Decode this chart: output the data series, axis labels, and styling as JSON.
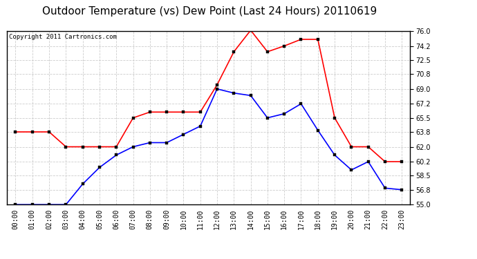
{
  "title": "Outdoor Temperature (vs) Dew Point (Last 24 Hours) 20110619",
  "copyright_text": "Copyright 2011 Cartronics.com",
  "x_labels": [
    "00:00",
    "01:00",
    "02:00",
    "03:00",
    "04:00",
    "05:00",
    "06:00",
    "07:00",
    "08:00",
    "09:00",
    "10:00",
    "11:00",
    "12:00",
    "13:00",
    "14:00",
    "15:00",
    "16:00",
    "17:00",
    "18:00",
    "19:00",
    "20:00",
    "21:00",
    "22:00",
    "23:00"
  ],
  "temp_red": [
    63.8,
    63.8,
    63.8,
    62.0,
    62.0,
    62.0,
    62.0,
    65.5,
    66.2,
    66.2,
    66.2,
    66.2,
    69.5,
    73.5,
    76.1,
    73.5,
    74.2,
    75.0,
    75.0,
    65.5,
    62.0,
    62.0,
    60.2,
    60.2
  ],
  "temp_blue": [
    55.0,
    55.0,
    55.0,
    55.0,
    57.5,
    59.5,
    61.0,
    62.0,
    62.5,
    62.5,
    63.5,
    64.5,
    69.0,
    68.5,
    68.2,
    65.5,
    66.0,
    67.2,
    64.0,
    61.0,
    59.2,
    60.2,
    57.0,
    56.8
  ],
  "ylim": [
    55.0,
    76.0
  ],
  "yticks": [
    55.0,
    56.8,
    58.5,
    60.2,
    62.0,
    63.8,
    65.5,
    67.2,
    69.0,
    70.8,
    72.5,
    74.2,
    76.0
  ],
  "color_red": "#ff0000",
  "color_blue": "#0000ff",
  "bg_color": "#ffffff",
  "outer_bg": "#c0c0c0",
  "grid_color": "#cccccc",
  "title_fontsize": 11,
  "tick_fontsize": 7,
  "copyright_fontsize": 6.5
}
